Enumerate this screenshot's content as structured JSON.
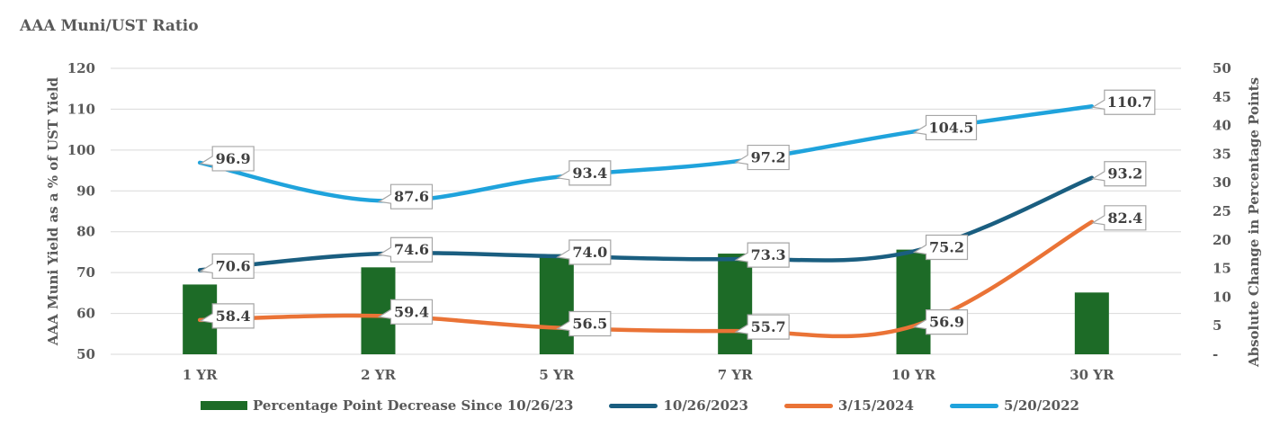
{
  "chart_data": {
    "type": "bar+line",
    "title": "AAA Muni/UST Ratio",
    "categories": [
      "1 YR",
      "2 YR",
      "5 YR",
      "7 YR",
      "10 YR",
      "30 YR"
    ],
    "ylabel": "AAA Muni Yield as a % of UST Yield",
    "y2label": "Absolute Change in Percentage Points",
    "ylim": [
      50,
      120
    ],
    "yticks": [
      50,
      60,
      70,
      80,
      90,
      100,
      110,
      120
    ],
    "y2lim": [
      0,
      50
    ],
    "y2ticks": [
      "-",
      "5",
      "10",
      "15",
      "20",
      "25",
      "30",
      "35",
      "40",
      "45",
      "50"
    ],
    "bars": {
      "name": "Percentage Point Decrease Since 10/26/23",
      "axis": "y2",
      "color": "#1d6b27",
      "values": [
        12.2,
        15.2,
        17.5,
        17.6,
        18.3,
        10.8
      ]
    },
    "series": [
      {
        "name": "10/26/2023",
        "color": "#1a5e80",
        "values": [
          70.6,
          74.6,
          74.0,
          73.3,
          75.2,
          93.2
        ]
      },
      {
        "name": "3/15/2024",
        "color": "#ea7336",
        "values": [
          58.4,
          59.4,
          56.5,
          55.7,
          56.9,
          82.4
        ]
      },
      {
        "name": "5/20/2022",
        "color": "#1fa3dc",
        "values": [
          96.9,
          87.6,
          93.4,
          97.2,
          104.5,
          110.7
        ]
      }
    ],
    "data_labels": [
      [
        "70.6",
        "74.6",
        "74.0",
        "73.3",
        "75.2",
        "93.2"
      ],
      [
        "58.4",
        "59.4",
        "56.5",
        "55.7",
        "56.9",
        "82.4"
      ],
      [
        "96.9",
        "87.6",
        "93.4",
        "97.2",
        "104.5",
        "110.7"
      ]
    ],
    "grid": true,
    "legend": "bottom"
  },
  "legend": {
    "bar_label": "Percentage Point Decrease Since 10/26/23",
    "s1_label": "10/26/2023",
    "s2_label": "3/15/2024",
    "s3_label": "5/20/2022"
  }
}
